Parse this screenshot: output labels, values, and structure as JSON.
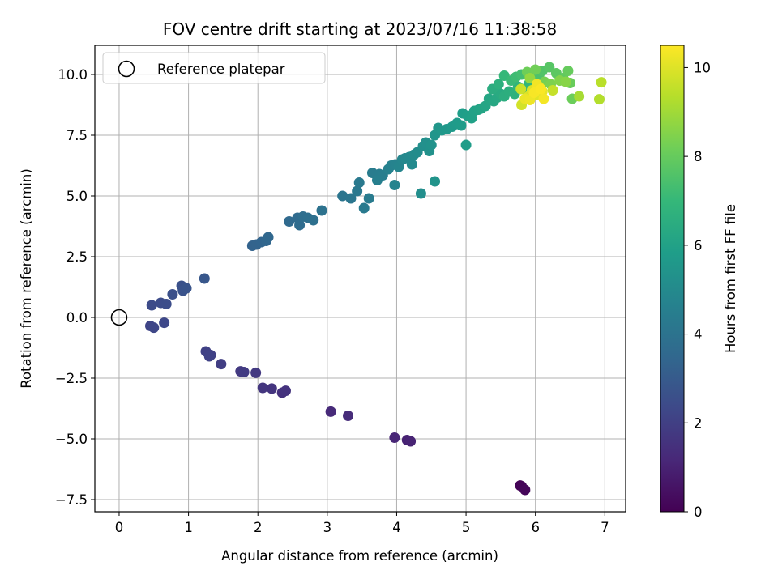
{
  "chart_data": {
    "type": "scatter",
    "title": "FOV centre drift starting at 2023/07/16 11:38:58",
    "xlabel": "Angular distance from reference (arcmin)",
    "ylabel": "Rotation from reference (arcmin)",
    "xlim": [
      -0.35,
      7.3
    ],
    "ylim": [
      -8.0,
      11.2
    ],
    "xticks": [
      0,
      1,
      2,
      3,
      4,
      5,
      6,
      7
    ],
    "xtick_labels": [
      "0",
      "1",
      "2",
      "3",
      "4",
      "5",
      "6",
      "7"
    ],
    "yticks": [
      -7.5,
      -5.0,
      -2.5,
      0.0,
      2.5,
      5.0,
      7.5,
      10.0
    ],
    "ytick_labels": [
      "−7.5",
      "−5.0",
      "−2.5",
      "0.0",
      "2.5",
      "5.0",
      "7.5",
      "10.0"
    ],
    "grid": true,
    "legend": {
      "position": "top-left",
      "entries": [
        "Reference platepar"
      ]
    },
    "reference_point": {
      "x": 0,
      "y": 0,
      "label": "Reference platepar"
    },
    "colorbar": {
      "label": "Hours from first FF file",
      "range": [
        0,
        10.5
      ],
      "ticks": [
        0,
        2,
        4,
        6,
        8,
        10
      ],
      "tick_labels": [
        "0",
        "2",
        "4",
        "6",
        "8",
        "10"
      ],
      "colormap": "viridis"
    },
    "colormap_stops": [
      "#440154",
      "#482878",
      "#3e4989",
      "#31688e",
      "#26828e",
      "#1f9e89",
      "#35b779",
      "#6ece58",
      "#b5de2b",
      "#fde725"
    ],
    "series": [
      {
        "points": [
          [
            5.78,
            -6.92,
            0.05
          ],
          [
            5.85,
            -7.1,
            0.15
          ],
          [
            5.8,
            -6.95,
            0.1
          ],
          [
            4.15,
            -5.05,
            1.0
          ],
          [
            4.2,
            -5.1,
            1.05
          ],
          [
            3.97,
            -4.95,
            1.1
          ],
          [
            3.05,
            -3.88,
            1.25
          ],
          [
            3.3,
            -4.05,
            1.3
          ],
          [
            2.35,
            -3.1,
            1.5
          ],
          [
            2.4,
            -3.02,
            1.55
          ],
          [
            2.2,
            -2.93,
            1.6
          ],
          [
            2.07,
            -2.9,
            1.65
          ],
          [
            1.97,
            -2.28,
            1.75
          ],
          [
            1.75,
            -2.22,
            1.8
          ],
          [
            1.8,
            -2.25,
            1.85
          ],
          [
            1.47,
            -1.92,
            1.95
          ],
          [
            1.32,
            -1.55,
            2.0
          ],
          [
            1.25,
            -1.4,
            2.05
          ],
          [
            1.3,
            -1.6,
            2.1
          ],
          [
            0.45,
            -0.35,
            2.2
          ],
          [
            0.5,
            -0.42,
            2.25
          ],
          [
            0.65,
            -0.22,
            2.3
          ],
          [
            0.47,
            0.5,
            2.4
          ],
          [
            0.6,
            0.6,
            2.45
          ],
          [
            0.68,
            0.55,
            2.5
          ],
          [
            0.77,
            0.95,
            2.6
          ],
          [
            0.9,
            1.3,
            2.65
          ],
          [
            0.92,
            1.1,
            2.7
          ],
          [
            0.97,
            1.2,
            2.75
          ],
          [
            1.23,
            1.6,
            2.85
          ],
          [
            1.92,
            2.95,
            3.3
          ],
          [
            1.98,
            3.0,
            3.35
          ],
          [
            2.05,
            3.1,
            3.4
          ],
          [
            2.12,
            3.15,
            3.45
          ],
          [
            2.15,
            3.3,
            3.5
          ],
          [
            2.45,
            3.95,
            3.6
          ],
          [
            2.57,
            4.1,
            3.65
          ],
          [
            2.6,
            3.8,
            3.7
          ],
          [
            2.65,
            4.15,
            3.75
          ],
          [
            2.72,
            4.1,
            3.8
          ],
          [
            2.8,
            4.0,
            3.85
          ],
          [
            2.92,
            4.4,
            3.95
          ],
          [
            3.22,
            5.0,
            4.1
          ],
          [
            3.34,
            4.9,
            4.15
          ],
          [
            3.43,
            5.2,
            4.2
          ],
          [
            3.46,
            5.55,
            4.25
          ],
          [
            3.53,
            4.5,
            4.3
          ],
          [
            3.6,
            4.9,
            4.35
          ],
          [
            3.65,
            5.95,
            4.4
          ],
          [
            3.75,
            5.9,
            4.45
          ],
          [
            3.8,
            5.85,
            4.5
          ],
          [
            3.72,
            5.65,
            4.55
          ],
          [
            3.88,
            6.1,
            4.6
          ],
          [
            3.92,
            6.25,
            4.65
          ],
          [
            3.98,
            6.3,
            4.7
          ],
          [
            3.97,
            5.45,
            4.75
          ],
          [
            4.03,
            6.2,
            4.8
          ],
          [
            4.08,
            6.5,
            4.85
          ],
          [
            4.12,
            6.55,
            4.9
          ],
          [
            4.18,
            6.6,
            4.95
          ],
          [
            4.22,
            6.3,
            5.0
          ],
          [
            4.25,
            6.7,
            5.05
          ],
          [
            4.3,
            6.8,
            5.1
          ],
          [
            4.35,
            5.1,
            5.15
          ],
          [
            4.38,
            7.05,
            5.2
          ],
          [
            4.42,
            7.2,
            5.25
          ],
          [
            4.47,
            6.85,
            5.3
          ],
          [
            4.5,
            7.1,
            5.35
          ],
          [
            4.55,
            5.6,
            5.4
          ],
          [
            4.55,
            7.5,
            5.45
          ],
          [
            4.6,
            7.8,
            5.5
          ],
          [
            4.65,
            7.7,
            5.55
          ],
          [
            4.72,
            7.75,
            5.6
          ],
          [
            4.8,
            7.85,
            5.65
          ],
          [
            4.87,
            8.0,
            5.7
          ],
          [
            4.93,
            7.9,
            5.75
          ],
          [
            5.0,
            7.1,
            5.8
          ],
          [
            4.95,
            8.4,
            5.85
          ],
          [
            5.02,
            8.3,
            5.9
          ],
          [
            5.08,
            8.2,
            5.95
          ],
          [
            5.12,
            8.5,
            6.0
          ],
          [
            5.18,
            8.55,
            6.05
          ],
          [
            5.22,
            8.6,
            6.1
          ],
          [
            5.28,
            8.7,
            6.15
          ],
          [
            5.33,
            9.0,
            6.2
          ],
          [
            5.4,
            8.9,
            6.25
          ],
          [
            5.45,
            9.05,
            6.3
          ],
          [
            5.5,
            9.2,
            6.4
          ],
          [
            5.38,
            9.4,
            6.5
          ],
          [
            5.55,
            9.1,
            6.55
          ],
          [
            5.62,
            9.3,
            6.6
          ],
          [
            5.47,
            9.6,
            6.65
          ],
          [
            5.7,
            9.2,
            6.7
          ],
          [
            5.75,
            9.5,
            6.8
          ],
          [
            5.85,
            9.4,
            6.85
          ],
          [
            5.9,
            9.6,
            6.9
          ],
          [
            5.55,
            9.95,
            7.0
          ],
          [
            5.65,
            9.75,
            7.1
          ],
          [
            5.72,
            9.9,
            7.2
          ],
          [
            5.8,
            10.0,
            7.3
          ],
          [
            5.95,
            10.05,
            7.4
          ],
          [
            6.05,
            9.95,
            7.5
          ],
          [
            6.1,
            10.15,
            7.6
          ],
          [
            6.2,
            10.3,
            7.7
          ],
          [
            6.3,
            10.05,
            7.8
          ],
          [
            6.4,
            9.85,
            7.9
          ],
          [
            6.47,
            10.15,
            8.0
          ],
          [
            6.5,
            9.65,
            8.05
          ],
          [
            6.53,
            9.0,
            8.1
          ],
          [
            5.88,
            10.1,
            8.15
          ],
          [
            6.0,
            10.2,
            8.2
          ],
          [
            6.13,
            9.7,
            8.3
          ],
          [
            6.22,
            9.6,
            8.4
          ],
          [
            6.35,
            9.75,
            8.5
          ],
          [
            6.44,
            9.7,
            8.6
          ],
          [
            6.02,
            9.45,
            8.7
          ],
          [
            5.92,
            9.85,
            8.8
          ],
          [
            6.63,
            9.1,
            9.1
          ],
          [
            6.92,
            8.98,
            9.3
          ],
          [
            6.95,
            9.68,
            9.4
          ],
          [
            6.25,
            9.35,
            9.6
          ],
          [
            5.79,
            9.4,
            9.7
          ],
          [
            5.8,
            8.75,
            9.8
          ],
          [
            5.9,
            9.1,
            9.9
          ],
          [
            5.95,
            9.35,
            10.0
          ],
          [
            6.0,
            9.15,
            10.05
          ],
          [
            6.05,
            9.5,
            10.1
          ],
          [
            6.1,
            9.3,
            10.15
          ],
          [
            5.85,
            9.0,
            10.2
          ],
          [
            5.92,
            8.95,
            10.25
          ],
          [
            6.02,
            9.6,
            10.3
          ],
          [
            6.12,
            9.0,
            10.35
          ],
          [
            5.98,
            9.25,
            10.4
          ],
          [
            6.08,
            9.4,
            10.45
          ]
        ]
      }
    ]
  }
}
